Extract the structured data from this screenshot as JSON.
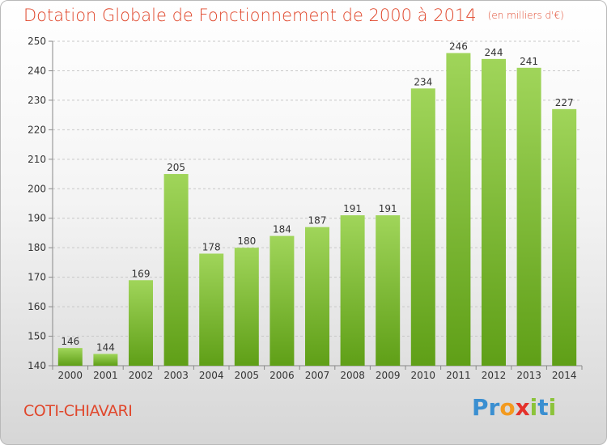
{
  "header": {
    "title": "Dotation Globale de Fonctionnement de 2000 à 2014",
    "unit": "(en milliers d'€)"
  },
  "footer": {
    "commune": "COTI-CHIAVARI",
    "brand": {
      "text": "Proxiti",
      "letters": [
        {
          "char": "P",
          "color": "#3a8fd1"
        },
        {
          "char": "r",
          "color": "#3a8fd1"
        },
        {
          "char": "o",
          "color": "#f39a1f"
        },
        {
          "char": "x",
          "color": "#e4312b"
        },
        {
          "char": "i",
          "color": "#8bc33a"
        },
        {
          "char": "t",
          "color": "#3a8fd1"
        },
        {
          "char": "i",
          "color": "#8bc33a"
        }
      ]
    }
  },
  "colors": {
    "accent": "#e0472c",
    "bar_top": "#a0d55a",
    "bar_bottom": "#5f9f17",
    "grid": "#c8c8c8"
  },
  "chart_data": {
    "type": "bar",
    "categories": [
      "2000",
      "2001",
      "2002",
      "2003",
      "2004",
      "2005",
      "2006",
      "2007",
      "2008",
      "2009",
      "2010",
      "2011",
      "2012",
      "2013",
      "2014"
    ],
    "values": [
      146,
      144,
      169,
      205,
      178,
      180,
      184,
      187,
      191,
      191,
      234,
      246,
      244,
      241,
      227
    ],
    "title": "Dotation Globale de Fonctionnement de 2000 à 2014",
    "ylim": [
      140,
      250
    ],
    "yticks": [
      140,
      150,
      160,
      170,
      180,
      190,
      200,
      210,
      220,
      230,
      240,
      250
    ],
    "grid": true,
    "data_labels": true
  }
}
